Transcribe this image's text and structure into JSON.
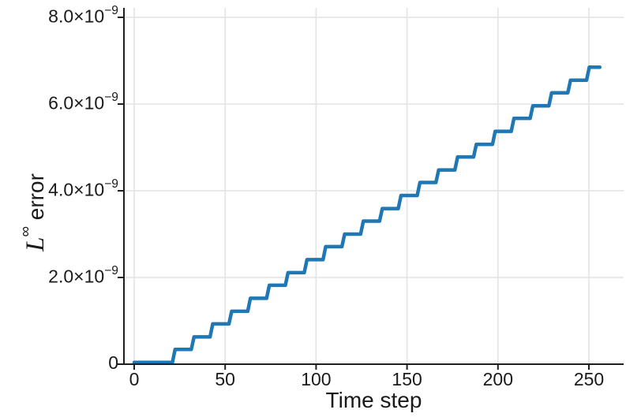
{
  "figure": {
    "background": "#ffffff",
    "text_color": "#1a1a1a",
    "axis_color": "#1f1f1f",
    "grid_color": "#e6e6e6"
  },
  "chart_data": {
    "type": "line",
    "title": "",
    "xlabel": "Time step",
    "ylabel": "L^∞ error",
    "ylabel_parts": {
      "letter": "L",
      "sup": "∞",
      "rest": " error"
    },
    "x_ticks": [
      0,
      50,
      100,
      150,
      200,
      250
    ],
    "x_tick_labels": [
      "0",
      "50",
      "100",
      "150",
      "200",
      "250"
    ],
    "y_ticks_1e9": [
      0,
      2,
      4,
      6,
      8
    ],
    "y_tick_labels": [
      "0",
      "2.0×10^−9",
      "4.0×10^−9",
      "6.0×10^−9",
      "8.0×10^−9"
    ],
    "xlim": [
      -6,
      269
    ],
    "ylim_1e9": [
      0,
      8.2
    ],
    "y_unit": "1e-9",
    "grid": true,
    "legend_position": "none",
    "series": [
      {
        "name": "L-infinity error",
        "color": "#1f77b4",
        "line_width": 4.5,
        "x": [
          0,
          21.0,
          22.5,
          31.4,
          32.9,
          41.7,
          43.2,
          52.1,
          53.6,
          62.4,
          63.9,
          72.8,
          74.3,
          83.1,
          84.6,
          93.5,
          95.0,
          103.8,
          105.3,
          114.2,
          115.7,
          124.5,
          126.0,
          134.9,
          136.4,
          145.2,
          146.7,
          155.6,
          157.1,
          165.9,
          167.4,
          176.3,
          177.8,
          186.6,
          188.1,
          197.0,
          198.5,
          207.3,
          208.8,
          217.7,
          219.2,
          228.0,
          229.5,
          238.4,
          239.9,
          248.7,
          250.2,
          256
        ],
        "y_1e9": [
          0.04,
          0.04,
          0.34,
          0.34,
          0.63,
          0.63,
          0.93,
          0.93,
          1.22,
          1.22,
          1.52,
          1.52,
          1.82,
          1.82,
          2.11,
          2.11,
          2.41,
          2.41,
          2.71,
          2.71,
          3.0,
          3.0,
          3.3,
          3.3,
          3.59,
          3.59,
          3.89,
          3.89,
          4.19,
          4.19,
          4.48,
          4.48,
          4.78,
          4.78,
          5.07,
          5.07,
          5.37,
          5.37,
          5.67,
          5.67,
          5.96,
          5.96,
          6.26,
          6.26,
          6.55,
          6.55,
          6.85,
          6.85
        ]
      }
    ]
  }
}
